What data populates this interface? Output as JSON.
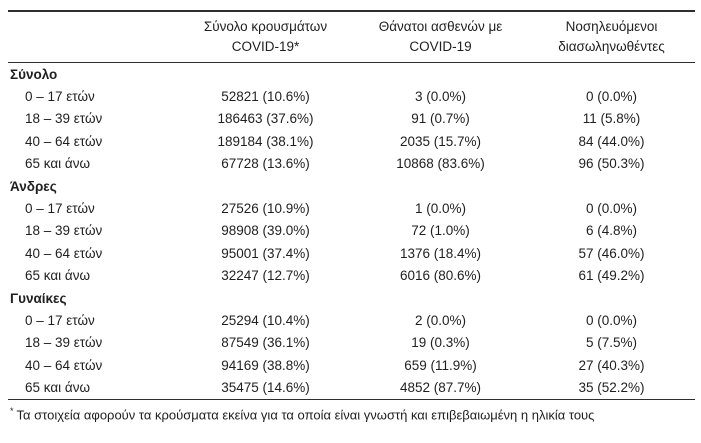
{
  "table": {
    "columns": [
      {
        "line1": "",
        "line2": ""
      },
      {
        "line1": "Σύνολο κρουσμάτων",
        "line2": "COVID-19*"
      },
      {
        "line1": "Θάνατοι ασθενών με",
        "line2": "COVID-19"
      },
      {
        "line1": "Νοσηλευόμενοι",
        "line2": "διασωληνωθέντες"
      }
    ],
    "sections": [
      {
        "title": "Σύνολο",
        "rows": [
          {
            "label": "0 – 17 ετών",
            "cases": "52821 (10.6%)",
            "deaths": "3 (0.0%)",
            "intubated": "0 (0.0%)"
          },
          {
            "label": "18 – 39 ετών",
            "cases": "186463 (37.6%)",
            "deaths": "91 (0.7%)",
            "intubated": "11 (5.8%)"
          },
          {
            "label": "40 – 64 ετών",
            "cases": "189184 (38.1%)",
            "deaths": "2035 (15.7%)",
            "intubated": "84 (44.0%)"
          },
          {
            "label": "65 και άνω",
            "cases": "67728 (13.6%)",
            "deaths": "10868 (83.6%)",
            "intubated": "96 (50.3%)"
          }
        ]
      },
      {
        "title": "Άνδρες",
        "rows": [
          {
            "label": "0 – 17 ετών",
            "cases": "27526 (10.9%)",
            "deaths": "1 (0.0%)",
            "intubated": "0 (0.0%)"
          },
          {
            "label": "18 – 39 ετών",
            "cases": "98908 (39.0%)",
            "deaths": "72 (1.0%)",
            "intubated": "6 (4.8%)"
          },
          {
            "label": "40 – 64 ετών",
            "cases": "95001 (37.4%)",
            "deaths": "1376 (18.4%)",
            "intubated": "57 (46.0%)"
          },
          {
            "label": "65 και άνω",
            "cases": "32247 (12.7%)",
            "deaths": "6016 (80.6%)",
            "intubated": "61 (49.2%)"
          }
        ]
      },
      {
        "title": "Γυναίκες",
        "rows": [
          {
            "label": "0 – 17 ετών",
            "cases": "25294 (10.4%)",
            "deaths": "2 (0.0%)",
            "intubated": "0 (0.0%)"
          },
          {
            "label": "18 – 39 ετών",
            "cases": "87549 (36.1%)",
            "deaths": "19 (0.3%)",
            "intubated": "5 (7.5%)"
          },
          {
            "label": "40 – 64 ετών",
            "cases": "94169 (38.8%)",
            "deaths": "659 (11.9%)",
            "intubated": "27 (40.3%)"
          },
          {
            "label": "65 και άνω",
            "cases": "35475 (14.6%)",
            "deaths": "4852 (87.7%)",
            "intubated": "35 (52.2%)"
          }
        ]
      }
    ]
  },
  "footnote": {
    "marker": "*",
    "text": "Τα στοιχεία αφορούν τα κρούσματα εκείνα για τα οποία είναι γνωστή και επιβεβαιωμένη η ηλικία τους"
  },
  "colors": {
    "text": "#1f1f1f",
    "rule": "#2e2e2e",
    "background": "#ffffff"
  }
}
